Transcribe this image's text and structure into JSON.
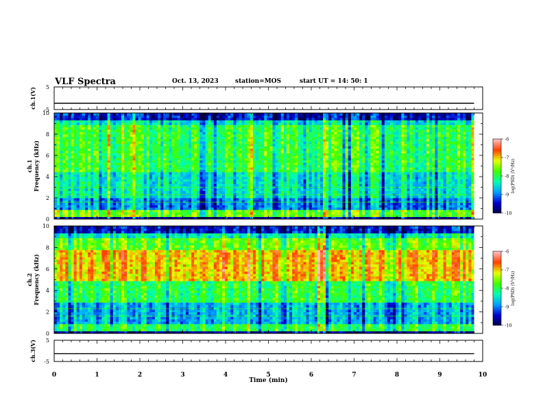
{
  "header": {
    "title": "VLF Spectra",
    "date": "Oct. 13, 2023",
    "station": "station=MOS",
    "start_ut": "start  UT =   14: 50: 1"
  },
  "chart_data": [
    {
      "type": "line",
      "name": "ch1-voltage",
      "ylabel": "ch.1(V)",
      "ylim": [
        -5,
        5
      ],
      "yticks": [
        "5",
        "-5"
      ],
      "series": [
        {
          "x": [
            0,
            9.8
          ],
          "values": [
            -2.2,
            -2.2
          ]
        }
      ]
    },
    {
      "type": "heatmap",
      "name": "ch1-spectrogram",
      "ylabel": "ch.1\nFrequency (kHz)",
      "ylim": [
        0,
        10
      ],
      "yticks": [
        "0",
        "2",
        "4",
        "6",
        "8",
        "10"
      ],
      "xlim": [
        0,
        9.8
      ],
      "colorbar": {
        "label": "log(PSD) (V²/Hz)",
        "ticks": [
          "-6",
          "-7",
          "-8",
          "-9",
          "-10"
        ],
        "range": [
          -10,
          -6
        ]
      },
      "bands": [
        {
          "f": [
            0.0,
            0.3
          ],
          "level": -9.6
        },
        {
          "f": [
            0.3,
            1.0
          ],
          "level": -7.6
        },
        {
          "f": [
            1.0,
            1.9
          ],
          "level": -8.9
        },
        {
          "f": [
            1.9,
            4.5
          ],
          "level": -8.4
        },
        {
          "f": [
            4.5,
            8.8
          ],
          "level": -7.9
        },
        {
          "f": [
            8.8,
            9.3
          ],
          "level": -8.4
        },
        {
          "f": [
            9.3,
            10.0
          ],
          "level": -9.4
        }
      ]
    },
    {
      "type": "heatmap",
      "name": "ch2-spectrogram",
      "ylabel": "ch.2\nFrequency (kHz)",
      "ylim": [
        0,
        10
      ],
      "yticks": [
        "0",
        "2",
        "4",
        "6",
        "8",
        "10"
      ],
      "xlim": [
        0,
        9.8
      ],
      "colorbar": {
        "label": "log(PSD) (V²/Hz)",
        "ticks": [
          "-6",
          "-7",
          "-8",
          "-9",
          "-10"
        ],
        "range": [
          -10,
          -6
        ]
      },
      "bands": [
        {
          "f": [
            0.0,
            0.3
          ],
          "level": -9.6
        },
        {
          "f": [
            0.3,
            1.0
          ],
          "level": -7.9
        },
        {
          "f": [
            1.0,
            2.8
          ],
          "level": -8.7
        },
        {
          "f": [
            2.8,
            5.0
          ],
          "level": -7.9
        },
        {
          "f": [
            5.0,
            7.8
          ],
          "level": -6.9
        },
        {
          "f": [
            7.8,
            8.8
          ],
          "level": -7.6
        },
        {
          "f": [
            8.8,
            9.4
          ],
          "level": -8.3
        },
        {
          "f": [
            9.4,
            10.0
          ],
          "level": -9.4
        }
      ]
    },
    {
      "type": "line",
      "name": "ch3-voltage",
      "ylabel": "ch.3(V)",
      "ylim": [
        -5,
        5
      ],
      "yticks": [
        "5",
        "-5"
      ],
      "series": [
        {
          "x": [
            0,
            9.8
          ],
          "values": [
            -1.3,
            -1.3
          ]
        }
      ]
    }
  ],
  "xaxis": {
    "label": "Time (min)",
    "ticks": [
      "0",
      "1",
      "2",
      "3",
      "4",
      "5",
      "6",
      "7",
      "8",
      "9",
      "10"
    ],
    "xlim": [
      0,
      10
    ]
  },
  "colors": {
    "colormap": [
      "#000040",
      "#0000d0",
      "#00a0ff",
      "#00ffb0",
      "#40ff00",
      "#e8ff00",
      "#ff4000",
      "#ffc0c0"
    ]
  }
}
